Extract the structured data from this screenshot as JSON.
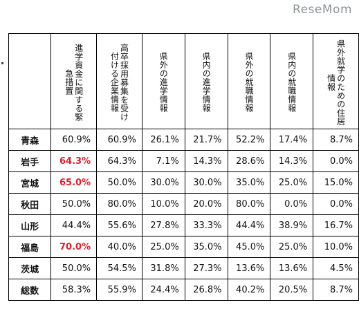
{
  "watermark": "ReseMom",
  "highlight_color": "#e0212b",
  "headers": [
    "進学資金に関する緊\n急措置",
    "高卒採用募集を受け\n付ける企業情報",
    "県外の進学情報",
    "県内の進学情報",
    "県外の就職情報",
    "県内の就職情報",
    "県外就学のための住居\n情報"
  ],
  "rows": [
    {
      "pref": "青森",
      "values": [
        "60.9%",
        "60.9%",
        "26.1%",
        "21.7%",
        "52.2%",
        "17.4%",
        "8.7%"
      ],
      "highlight": [
        false,
        false,
        false,
        false,
        false,
        false,
        false
      ]
    },
    {
      "pref": "岩手",
      "values": [
        "64.3%",
        "64.3%",
        "7.1%",
        "14.3%",
        "28.6%",
        "14.3%",
        "0.0%"
      ],
      "highlight": [
        true,
        false,
        false,
        false,
        false,
        false,
        false
      ]
    },
    {
      "pref": "宮城",
      "values": [
        "65.0%",
        "50.0%",
        "30.0%",
        "30.0%",
        "35.0%",
        "25.0%",
        "15.0%"
      ],
      "highlight": [
        true,
        false,
        false,
        false,
        false,
        false,
        false
      ]
    },
    {
      "pref": "秋田",
      "values": [
        "50.0%",
        "80.0%",
        "10.0%",
        "20.0%",
        "80.0%",
        "0.0%",
        "0.0%"
      ],
      "highlight": [
        false,
        false,
        false,
        false,
        false,
        false,
        false
      ]
    },
    {
      "pref": "山形",
      "values": [
        "44.4%",
        "55.6%",
        "27.8%",
        "33.3%",
        "44.4%",
        "38.9%",
        "16.7%"
      ],
      "highlight": [
        false,
        false,
        false,
        false,
        false,
        false,
        false
      ]
    },
    {
      "pref": "福島",
      "values": [
        "70.0%",
        "40.0%",
        "25.0%",
        "35.0%",
        "45.0%",
        "25.0%",
        "10.0%"
      ],
      "highlight": [
        true,
        false,
        false,
        false,
        false,
        false,
        false
      ]
    },
    {
      "pref": "茨城",
      "values": [
        "50.0%",
        "54.5%",
        "31.8%",
        "27.3%",
        "13.6%",
        "13.6%",
        "4.5%"
      ],
      "highlight": [
        false,
        false,
        false,
        false,
        false,
        false,
        false
      ]
    },
    {
      "pref": "総数",
      "values": [
        "58.3%",
        "55.9%",
        "24.4%",
        "26.8%",
        "40.2%",
        "20.5%",
        "8.7%"
      ],
      "highlight": [
        false,
        false,
        false,
        false,
        false,
        false,
        false
      ]
    }
  ]
}
